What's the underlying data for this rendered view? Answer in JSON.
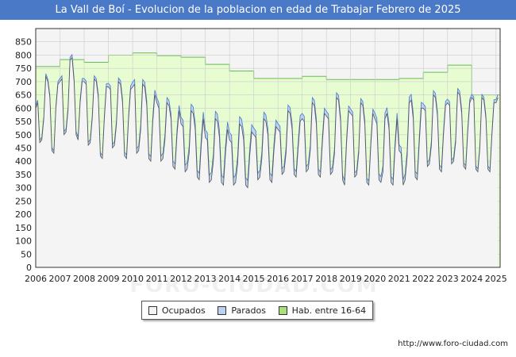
{
  "title": "La Vall de Boí - Evolucion de la poblacion en edad de Trabajar Febrero de 2025",
  "source": "http://www.foro-ciudad.com",
  "watermark": "FORO-CIUDAD.COM",
  "colors": {
    "title_bg": "#4a79c8",
    "ocupados_fill": "#f4f4f4",
    "ocupados_line": "#555555",
    "parados_fill": "#bcd2ee",
    "parados_line": "#4a79c8",
    "hab_fill": "#e8fcd2",
    "hab_line": "#66bb55",
    "grid": "#cccccc"
  },
  "legend": {
    "ocupados": "Ocupados",
    "parados": "Parados",
    "hab": "Hab. entre 16-64"
  },
  "chart_data": {
    "type": "area",
    "title": "La Vall de Boí - Evolucion de la poblacion en edad de Trabajar Febrero de 2025",
    "xlabel": "",
    "ylabel": "",
    "ylim": [
      0,
      900
    ],
    "xlim": [
      2006,
      2025.17
    ],
    "y_ticks": [
      0,
      50,
      100,
      150,
      200,
      250,
      300,
      350,
      400,
      450,
      500,
      550,
      600,
      650,
      700,
      750,
      800,
      850
    ],
    "x_ticks": [
      "2006",
      "2007",
      "2008",
      "2009",
      "2010",
      "2011",
      "2012",
      "2013",
      "2014",
      "2015",
      "2016",
      "2017",
      "2018",
      "2019",
      "2020",
      "2021",
      "2022",
      "2023",
      "2024",
      "2025"
    ],
    "grid": true,
    "legend_position": "bottom",
    "hab_16_64": {
      "name": "Hab. entre 16-64",
      "years": [
        2006,
        2007,
        2008,
        2009,
        2010,
        2011,
        2012,
        2013,
        2014,
        2015,
        2016,
        2017,
        2018,
        2019,
        2020,
        2021,
        2022,
        2023,
        2024,
        2025
      ],
      "values": [
        757,
        783,
        773,
        800,
        808,
        798,
        792,
        765,
        740,
        712,
        712,
        720,
        708,
        708,
        708,
        712,
        735,
        762,
        650,
        650
      ]
    },
    "monthly_pattern": {
      "description": "Monthly values per year (Jan..Dec), seasonal tourism pattern",
      "ocupados_by_year": {
        "2006": [
          600,
          620,
          470,
          480,
          560,
          720,
          700,
          640,
          440,
          430,
          600,
          690
        ],
        "2007": [
          700,
          710,
          500,
          510,
          590,
          780,
          790,
          700,
          500,
          480,
          620,
          700
        ],
        "2008": [
          700,
          690,
          460,
          470,
          560,
          710,
          700,
          640,
          420,
          410,
          560,
          680
        ],
        "2009": [
          680,
          670,
          450,
          460,
          540,
          700,
          690,
          620,
          420,
          410,
          560,
          670
        ],
        "2010": [
          680,
          690,
          430,
          440,
          520,
          690,
          680,
          610,
          410,
          400,
          550,
          650
        ],
        "2011": [
          620,
          600,
          400,
          410,
          480,
          620,
          610,
          560,
          380,
          370,
          500,
          590
        ],
        "2012": [
          540,
          530,
          360,
          370,
          430,
          590,
          580,
          520,
          340,
          330,
          460,
          560
        ],
        "2013": [
          490,
          480,
          320,
          330,
          400,
          560,
          550,
          490,
          320,
          310,
          430,
          520
        ],
        "2014": [
          480,
          470,
          310,
          320,
          390,
          540,
          530,
          480,
          310,
          300,
          420,
          510
        ],
        "2015": [
          500,
          490,
          330,
          340,
          410,
          560,
          550,
          500,
          330,
          320,
          440,
          530
        ],
        "2016": [
          520,
          510,
          350,
          360,
          430,
          590,
          580,
          520,
          350,
          340,
          450,
          550
        ],
        "2017": [
          560,
          550,
          360,
          370,
          440,
          620,
          610,
          540,
          350,
          340,
          470,
          580
        ],
        "2018": [
          570,
          560,
          350,
          360,
          430,
          640,
          630,
          550,
          330,
          310,
          470,
          590
        ],
        "2019": [
          580,
          570,
          340,
          350,
          430,
          620,
          610,
          540,
          320,
          310,
          460,
          580
        ],
        "2020": [
          560,
          540,
          330,
          320,
          360,
          560,
          580,
          520,
          320,
          310,
          450,
          560
        ],
        "2021": [
          440,
          430,
          310,
          330,
          420,
          620,
          630,
          560,
          340,
          330,
          470,
          600
        ],
        "2022": [
          600,
          590,
          380,
          390,
          460,
          650,
          640,
          570,
          370,
          360,
          500,
          610
        ],
        "2023": [
          620,
          610,
          390,
          400,
          470,
          660,
          650,
          580,
          380,
          370,
          510,
          620
        ],
        "2024": [
          640,
          630,
          370,
          360,
          450,
          640,
          630,
          560,
          370,
          360,
          500,
          620
        ],
        "2025": [
          620,
          640
        ]
      },
      "parados_offset_by_year": {
        "2006": 10,
        "2007": 12,
        "2008": 12,
        "2009": 14,
        "2010": 18,
        "2011": 20,
        "2012": 25,
        "2013": 28,
        "2014": 28,
        "2015": 25,
        "2016": 22,
        "2017": 20,
        "2018": 18,
        "2019": 16,
        "2020": 22,
        "2021": 22,
        "2022": 16,
        "2023": 14,
        "2024": 12,
        "2025": 12
      }
    }
  }
}
